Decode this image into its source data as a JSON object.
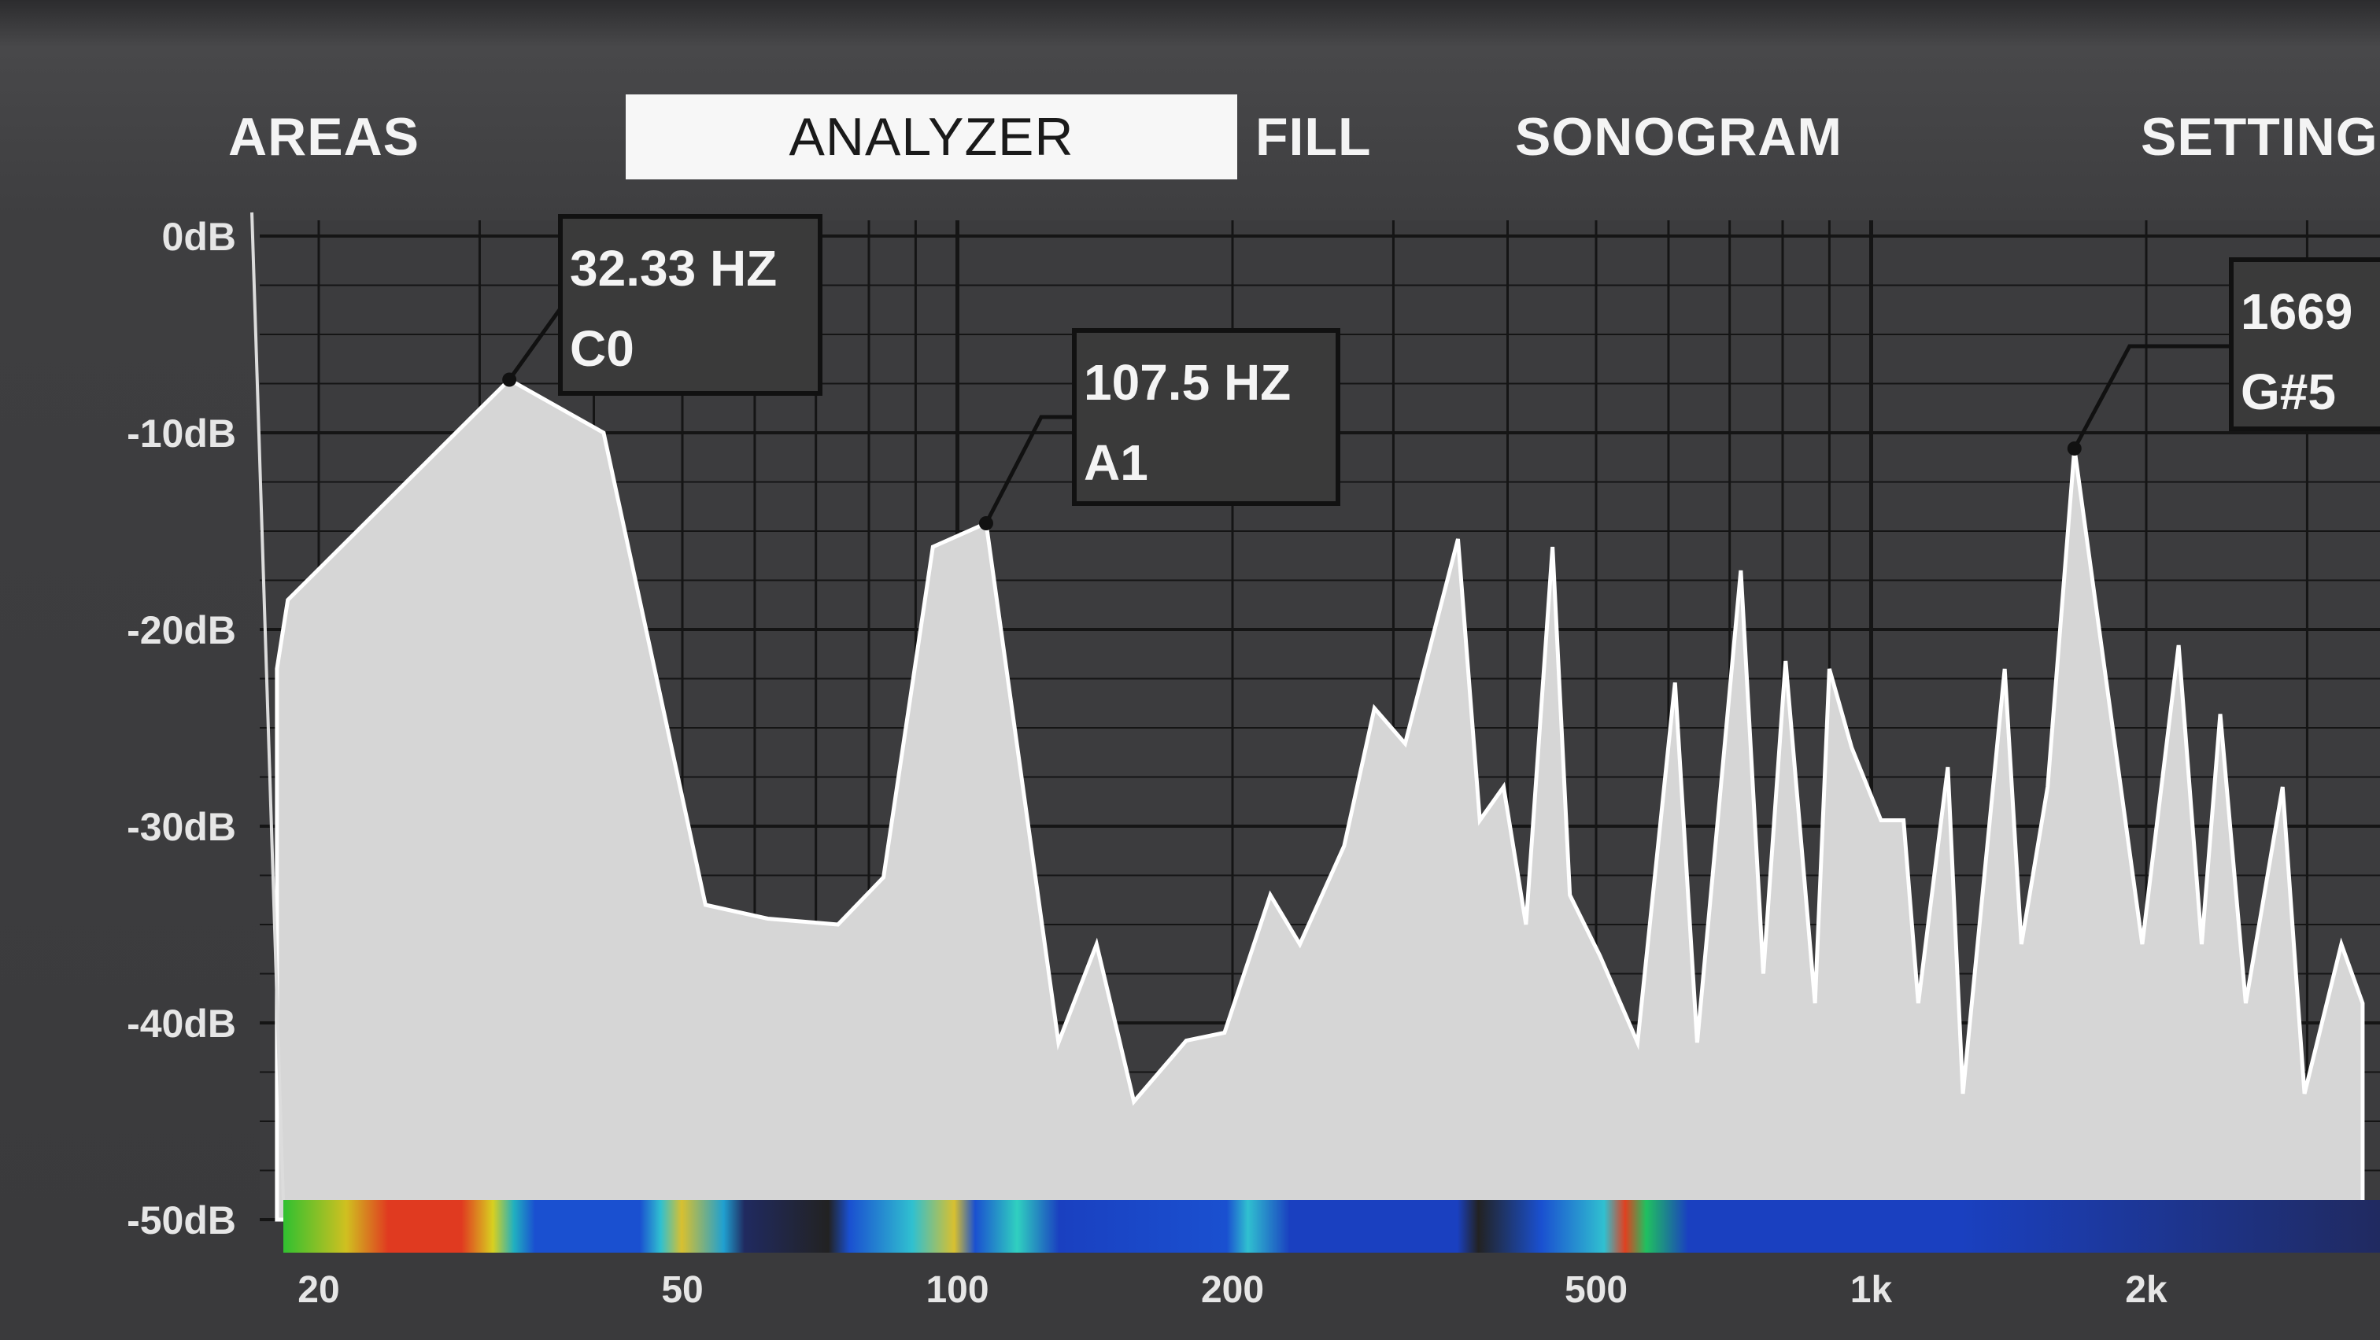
{
  "tabs": [
    {
      "label": "AREAS",
      "active": false
    },
    {
      "label": "ANALYZER",
      "active": true
    },
    {
      "label": "FILL",
      "active": false
    },
    {
      "label": "SONOGRAM",
      "active": false
    },
    {
      "label": "SETTING",
      "active": false
    }
  ],
  "chart_data": {
    "type": "area",
    "x_scale": "log",
    "xlim": [
      18,
      3500
    ],
    "ylim": [
      -50,
      0
    ],
    "grid": true,
    "y_ticks": [
      {
        "v": 0,
        "label": "0dB"
      },
      {
        "v": -10,
        "label": "-10dB"
      },
      {
        "v": -20,
        "label": "-20dB"
      },
      {
        "v": -30,
        "label": "-30dB"
      },
      {
        "v": -40,
        "label": "-40dB"
      },
      {
        "v": -50,
        "label": "-50dB"
      }
    ],
    "x_ticks": [
      {
        "v": 20,
        "label": "20"
      },
      {
        "v": 50,
        "label": "50"
      },
      {
        "v": 100,
        "label": "100"
      },
      {
        "v": 200,
        "label": "200"
      },
      {
        "v": 500,
        "label": "500"
      },
      {
        "v": 1000,
        "label": "1k"
      },
      {
        "v": 2000,
        "label": "2k"
      }
    ],
    "series": [
      {
        "color": "#e0e0e0",
        "x": [
          18,
          18.5,
          32.33,
          41,
          53,
          62,
          74,
          83,
          94,
          107.5,
          129,
          142,
          156,
          178,
          196,
          220,
          237,
          265,
          286,
          309,
          353,
          373,
          396,
          419,
          448,
          468,
          505,
          555,
          610,
          645,
          720,
          762,
          806,
          868,
          900,
          952,
          1025,
          1085,
          1126,
          1213,
          1260,
          1400,
          1460,
          1560,
          1669,
          1980,
          2170,
          2300,
          2410,
          2570,
          2820,
          2980,
          3270,
          3450
        ],
        "y": [
          -22,
          -18.5,
          -7.3,
          -10,
          -34,
          -34.7,
          -35,
          -32.6,
          -15.8,
          -14.6,
          -41,
          -36,
          -44,
          -40.9,
          -40.5,
          -33.5,
          -36,
          -31,
          -24,
          -25.8,
          -15.4,
          -29.7,
          -28,
          -35,
          -15.8,
          -33.5,
          -36.6,
          -41,
          -22.7,
          -41,
          -17,
          -37.5,
          -21.6,
          -39,
          -22,
          -26,
          -29.7,
          -29.7,
          -39,
          -27,
          -43.6,
          -22,
          -36,
          -28,
          -10.8,
          -36,
          -20.8,
          -36,
          -24.3,
          -39,
          -28,
          -43.6,
          -36,
          -39
        ]
      }
    ],
    "annotations": [
      {
        "freq": 32.33,
        "db": -7.3,
        "line1": "32.33 HZ",
        "line2": "C0"
      },
      {
        "freq": 107.5,
        "db": -14.6,
        "line1": "107.5 HZ",
        "line2": "A1"
      },
      {
        "freq": 1669,
        "db": -10.8,
        "line1": "1669",
        "line2": "G#5"
      }
    ],
    "colors": {
      "fill": "#d6d6d6",
      "stroke": "#ffffff",
      "grid": "#151515",
      "plot_bg": "#3c3c3e"
    }
  }
}
